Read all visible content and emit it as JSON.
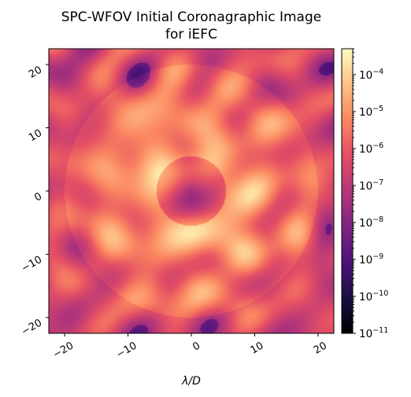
{
  "chart_data": {
    "type": "heatmap",
    "title": "SPC-WFOV Initial Coronagraphic Image\nfor iEFC",
    "xlabel": "λ/D",
    "ylabel": "",
    "xlim": [
      -22.5,
      22.5
    ],
    "ylim": [
      -22.5,
      22.5
    ],
    "x_ticks": [
      -20,
      -10,
      0,
      10,
      20
    ],
    "y_ticks": [
      -20,
      -10,
      0,
      10,
      20
    ],
    "x_tick_labels": [
      "−20",
      "−10",
      "0",
      "10",
      "20"
    ],
    "y_tick_labels": [
      "−20",
      "−10",
      "0",
      "10",
      "20"
    ],
    "tick_rotation_deg": 30,
    "colormap": "magma",
    "color_scale": "log",
    "colorbar": {
      "vmin": 1e-11,
      "vmax": 0.0005,
      "tick_values": [
        1e-11,
        1e-10,
        1e-09,
        1e-08,
        1e-07,
        1e-06,
        1e-05,
        0.0001
      ],
      "tick_labels": [
        {
          "base": "10",
          "exp": "−11"
        },
        {
          "base": "10",
          "exp": "−10"
        },
        {
          "base": "10",
          "exp": "−9"
        },
        {
          "base": "10",
          "exp": "−8"
        },
        {
          "base": "10",
          "exp": "−7"
        },
        {
          "base": "10",
          "exp": "−6"
        },
        {
          "base": "10",
          "exp": "−5"
        },
        {
          "base": "10",
          "exp": "−4"
        }
      ]
    },
    "dark_hole": {
      "inner_radius": 5.5,
      "outer_radius": 20
    }
  }
}
